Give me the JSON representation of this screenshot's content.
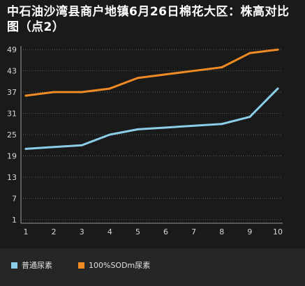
{
  "chart_data": {
    "type": "line",
    "title": "中石油沙湾县商户地镇6月26日棉花大区：株高对比图（点2）",
    "x": [
      1,
      2,
      3,
      4,
      5,
      6,
      7,
      8,
      9,
      10
    ],
    "yticks": [
      1,
      7,
      13,
      19,
      25,
      31,
      37,
      43,
      49
    ],
    "ylim": [
      0,
      50
    ],
    "grid": true,
    "legend_position": "bottom",
    "series": [
      {
        "name": "普通尿素",
        "color": "#8ccde8",
        "values": [
          21,
          21.5,
          22,
          25,
          26.5,
          27,
          27.5,
          28,
          30,
          38
        ]
      },
      {
        "name": "100%SODm尿素",
        "color": "#f08a24",
        "values": [
          36,
          37,
          37,
          38,
          41,
          42,
          43,
          44,
          48,
          49
        ]
      }
    ]
  }
}
